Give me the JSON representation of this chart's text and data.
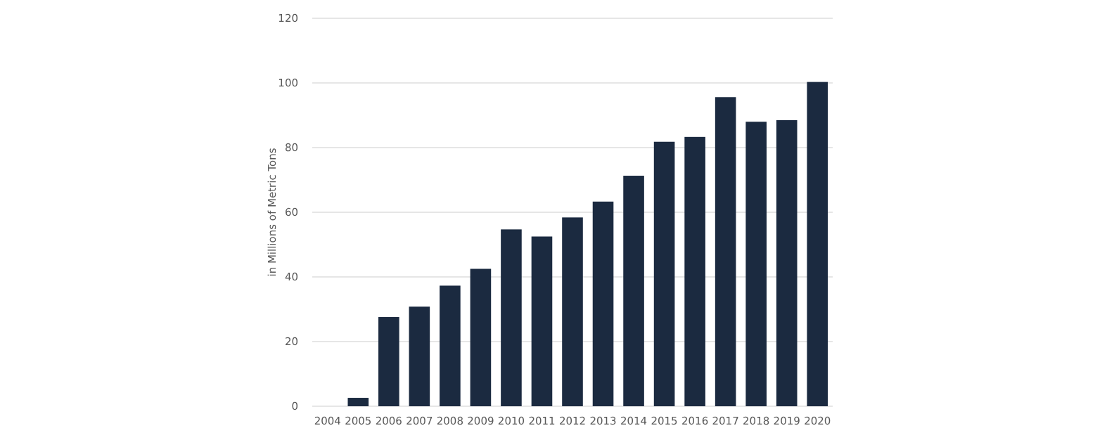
{
  "chart_data": {
    "type": "bar",
    "ylabel": "in Millions of Metric Tons",
    "categories": [
      "2004",
      "2005",
      "2006",
      "2007",
      "2008",
      "2009",
      "2010",
      "2011",
      "2012",
      "2013",
      "2014",
      "2015",
      "2016",
      "2017",
      "2018",
      "2019",
      "2020"
    ],
    "values": [
      0,
      2.6,
      27.6,
      30.8,
      37.3,
      42.5,
      54.7,
      52.5,
      58.4,
      63.3,
      71.3,
      81.8,
      83.3,
      95.6,
      88.0,
      88.5,
      100.3
    ],
    "color": "#1b2a40",
    "ylim": [
      0,
      120
    ],
    "yticks": [
      0,
      20,
      40,
      60,
      80,
      100,
      120
    ],
    "grid": "y"
  }
}
